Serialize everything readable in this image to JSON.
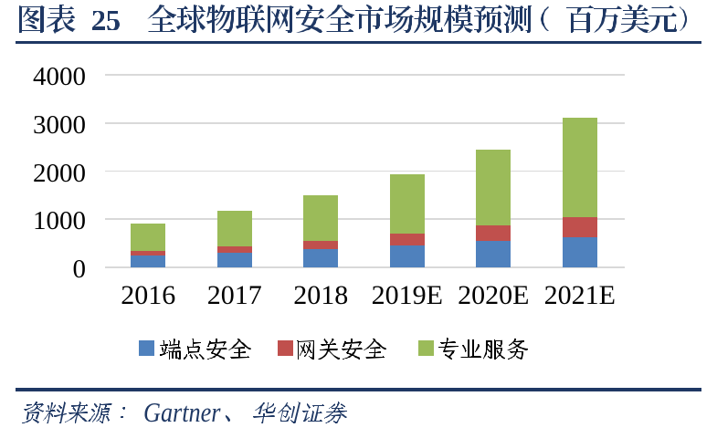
{
  "header": {
    "label": "图表",
    "figure_number": "25",
    "title": "图表 25  全球物联网安全市场规模预测（百万美元）",
    "title_text": "全球物联网安全市场规模预测",
    "unit_label": "（百万美元）"
  },
  "chart_data": {
    "type": "bar",
    "stacked": true,
    "title": "全球物联网安全市场规模预测（百万美元）",
    "categories": [
      "2016",
      "2017",
      "2018",
      "2019E",
      "2020E",
      "2021E"
    ],
    "series": [
      {
        "name": "端点安全",
        "color": "#4F81BD",
        "values": [
          240,
          302,
          373,
          459,
          541,
          631
        ]
      },
      {
        "name": "网关安全",
        "color": "#C0504D",
        "values": [
          102,
          138,
          186,
          251,
          327,
          415
        ]
      },
      {
        "name": "专业服务",
        "color": "#9BBB59",
        "values": [
          570,
          734,
          946,
          1221,
          1589,
          2071
        ]
      }
    ],
    "ylim": [
      0,
      4000
    ],
    "yticks": [
      0,
      1000,
      2000,
      3000,
      4000
    ],
    "grid": true,
    "legend_position": "bottom",
    "ylabel": "",
    "xlabel": ""
  },
  "footer": {
    "source_text": "资料来源：Gartner、华创证券",
    "source_label": "资料来源：",
    "sources": [
      "Gartner",
      "华创证券"
    ]
  },
  "colors": {
    "accent_navy": "#1F3864",
    "grid": "#D9D9D9",
    "axis_text": "#000000",
    "background": "#FFFFFF"
  }
}
